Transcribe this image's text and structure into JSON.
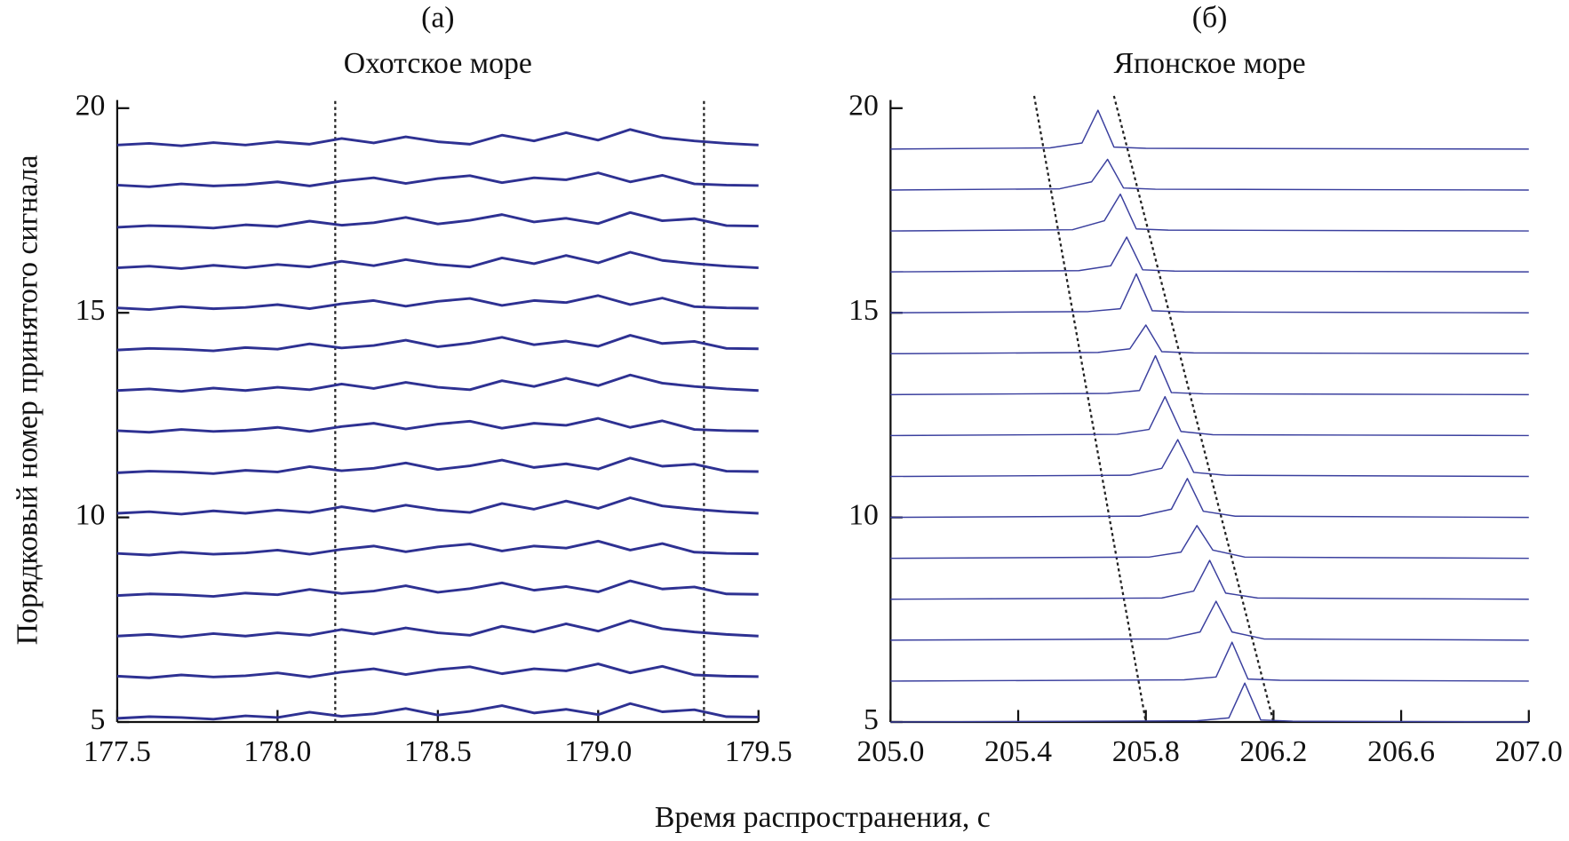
{
  "chart_data": [
    {
      "type": "line",
      "title": "(a)",
      "subtitle": "Охотское море",
      "ylabel": "Порядковый номер принятого сигнала",
      "xlabel": "Время распространения, с",
      "color": "#2e3192",
      "line_width": 2.6,
      "xlim": [
        177.5,
        179.5
      ],
      "ylim": [
        5,
        20.2
      ],
      "xticks": [
        177.5,
        {
          "value": 178,
          "label": "178.0"
        },
        178.5,
        {
          "value": 179,
          "label": "179.0"
        },
        179.5
      ],
      "yticks": [
        5,
        10,
        15,
        20
      ],
      "guides": [
        {
          "x": [
            178.18,
            178.18
          ],
          "y": [
            5,
            20.2
          ]
        },
        {
          "x": [
            179.33,
            179.33
          ],
          "y": [
            5,
            20.2
          ]
        }
      ],
      "x": [
        177.5,
        177.6,
        177.7,
        177.8,
        177.9,
        178.0,
        178.1,
        178.2,
        178.3,
        178.4,
        178.5,
        178.6,
        178.7,
        178.8,
        178.9,
        179.0,
        179.1,
        179.2,
        179.3,
        179.4,
        179.5
      ],
      "series": [
        {
          "values": [
            19.1,
            19.14,
            19.08,
            19.16,
            19.1,
            19.18,
            19.12,
            19.26,
            19.15,
            19.3,
            19.18,
            19.12,
            19.34,
            19.2,
            19.4,
            19.22,
            19.48,
            19.28,
            19.2,
            19.14,
            19.1
          ]
        },
        {
          "values": [
            18.12,
            18.08,
            18.15,
            18.1,
            18.13,
            18.2,
            18.1,
            18.22,
            18.3,
            18.16,
            18.28,
            18.35,
            18.18,
            18.3,
            18.25,
            18.42,
            18.2,
            18.36,
            18.15,
            18.12,
            18.11
          ]
        },
        {
          "values": [
            17.09,
            17.13,
            17.11,
            17.07,
            17.15,
            17.11,
            17.24,
            17.14,
            17.2,
            17.33,
            17.17,
            17.26,
            17.4,
            17.22,
            17.31,
            17.18,
            17.45,
            17.25,
            17.3,
            17.13,
            17.12
          ]
        },
        {
          "values": [
            16.1,
            16.14,
            16.08,
            16.16,
            16.1,
            16.18,
            16.12,
            16.26,
            16.15,
            16.3,
            16.18,
            16.12,
            16.34,
            16.2,
            16.4,
            16.22,
            16.48,
            16.28,
            16.2,
            16.14,
            16.1
          ]
        },
        {
          "values": [
            15.12,
            15.08,
            15.15,
            15.1,
            15.13,
            15.2,
            15.1,
            15.22,
            15.3,
            15.16,
            15.28,
            15.35,
            15.18,
            15.3,
            15.25,
            15.42,
            15.2,
            15.36,
            15.15,
            15.12,
            15.11
          ]
        },
        {
          "values": [
            14.09,
            14.13,
            14.11,
            14.07,
            14.15,
            14.11,
            14.24,
            14.14,
            14.2,
            14.33,
            14.17,
            14.26,
            14.4,
            14.22,
            14.31,
            14.18,
            14.45,
            14.25,
            14.3,
            14.13,
            14.12
          ]
        },
        {
          "values": [
            13.1,
            13.14,
            13.08,
            13.16,
            13.1,
            13.18,
            13.12,
            13.26,
            13.15,
            13.3,
            13.18,
            13.12,
            13.34,
            13.2,
            13.4,
            13.22,
            13.48,
            13.28,
            13.2,
            13.14,
            13.1
          ]
        },
        {
          "values": [
            12.12,
            12.08,
            12.15,
            12.1,
            12.13,
            12.2,
            12.1,
            12.22,
            12.3,
            12.16,
            12.28,
            12.35,
            12.18,
            12.3,
            12.25,
            12.42,
            12.2,
            12.36,
            12.15,
            12.12,
            12.11
          ]
        },
        {
          "values": [
            11.09,
            11.13,
            11.11,
            11.07,
            11.15,
            11.11,
            11.24,
            11.14,
            11.2,
            11.33,
            11.17,
            11.26,
            11.4,
            11.22,
            11.31,
            11.18,
            11.45,
            11.25,
            11.3,
            11.13,
            11.12
          ]
        },
        {
          "values": [
            10.1,
            10.14,
            10.08,
            10.16,
            10.1,
            10.18,
            10.12,
            10.26,
            10.15,
            10.3,
            10.18,
            10.12,
            10.34,
            10.2,
            10.4,
            10.22,
            10.48,
            10.28,
            10.2,
            10.14,
            10.1
          ]
        },
        {
          "values": [
            9.12,
            9.08,
            9.15,
            9.1,
            9.13,
            9.2,
            9.1,
            9.22,
            9.3,
            9.16,
            9.28,
            9.35,
            9.18,
            9.3,
            9.25,
            9.42,
            9.2,
            9.36,
            9.15,
            9.12,
            9.11
          ]
        },
        {
          "values": [
            8.09,
            8.13,
            8.11,
            8.07,
            8.15,
            8.11,
            8.24,
            8.14,
            8.2,
            8.33,
            8.17,
            8.26,
            8.4,
            8.22,
            8.31,
            8.18,
            8.45,
            8.25,
            8.3,
            8.13,
            8.12
          ]
        },
        {
          "values": [
            7.1,
            7.14,
            7.08,
            7.16,
            7.1,
            7.18,
            7.12,
            7.26,
            7.15,
            7.3,
            7.18,
            7.12,
            7.34,
            7.2,
            7.4,
            7.22,
            7.48,
            7.28,
            7.2,
            7.14,
            7.1
          ]
        },
        {
          "values": [
            6.12,
            6.08,
            6.15,
            6.1,
            6.13,
            6.2,
            6.1,
            6.22,
            6.3,
            6.16,
            6.28,
            6.35,
            6.18,
            6.3,
            6.25,
            6.42,
            6.2,
            6.36,
            6.15,
            6.12,
            6.11
          ]
        },
        {
          "values": [
            5.09,
            5.13,
            5.11,
            5.07,
            5.15,
            5.11,
            5.24,
            5.14,
            5.2,
            5.33,
            5.17,
            5.26,
            5.4,
            5.22,
            5.31,
            5.18,
            5.45,
            5.25,
            5.3,
            5.13,
            5.12
          ]
        }
      ]
    },
    {
      "type": "line",
      "title": "(б)",
      "subtitle": "Японское море",
      "color": "#3a3f9e",
      "line_width": 1.3,
      "xlim": [
        205,
        207
      ],
      "ylim": [
        5,
        20.2
      ],
      "xticks": [
        {
          "value": 205,
          "label": "205.0"
        },
        205.4,
        205.8,
        206.2,
        206.6,
        {
          "value": 207,
          "label": "207.0"
        }
      ],
      "yticks": [
        5,
        10,
        15,
        20
      ],
      "guides": [
        {
          "x": [
            205.45,
            205.8
          ],
          "y": [
            20.3,
            5
          ]
        },
        {
          "x": [
            205.7,
            206.2
          ],
          "y": [
            20.3,
            5
          ]
        }
      ],
      "series": [
        {
          "x": [
            205,
            205.5,
            205.6,
            205.65,
            205.7,
            205.8,
            207
          ],
          "values": [
            19,
            19.03,
            19.15,
            19.95,
            19.05,
            19.02,
            19
          ]
        },
        {
          "x": [
            205,
            205.53,
            205.63,
            205.68,
            205.73,
            205.83,
            207
          ],
          "values": [
            18,
            18.03,
            18.2,
            18.75,
            18.05,
            18.02,
            18
          ]
        },
        {
          "x": [
            205,
            205.57,
            205.67,
            205.72,
            205.77,
            205.87,
            207
          ],
          "values": [
            17,
            17.03,
            17.25,
            17.9,
            17.05,
            17.02,
            17
          ]
        },
        {
          "x": [
            205,
            205.59,
            205.69,
            205.74,
            205.79,
            205.89,
            207
          ],
          "values": [
            16,
            16.03,
            16.15,
            16.85,
            16.05,
            16.02,
            16
          ]
        },
        {
          "x": [
            205,
            205.62,
            205.72,
            205.77,
            205.82,
            205.92,
            207
          ],
          "values": [
            15,
            15.03,
            15.1,
            15.95,
            15.05,
            15.02,
            15
          ]
        },
        {
          "x": [
            205,
            205.65,
            205.75,
            205.8,
            205.85,
            205.95,
            207
          ],
          "values": [
            14,
            14.03,
            14.12,
            14.7,
            14.05,
            14.02,
            14
          ]
        },
        {
          "x": [
            205,
            205.68,
            205.78,
            205.83,
            205.88,
            205.98,
            207
          ],
          "values": [
            13,
            13.03,
            13.1,
            13.95,
            13.05,
            13.02,
            13
          ]
        },
        {
          "x": [
            205,
            205.71,
            205.81,
            205.86,
            205.91,
            206.01,
            207
          ],
          "values": [
            12,
            12.03,
            12.15,
            12.95,
            12.1,
            12.02,
            12
          ]
        },
        {
          "x": [
            205,
            205.75,
            205.85,
            205.9,
            205.95,
            206.05,
            207
          ],
          "values": [
            11,
            11.03,
            11.2,
            11.9,
            11.1,
            11.03,
            11
          ]
        },
        {
          "x": [
            205,
            205.78,
            205.88,
            205.93,
            205.98,
            206.08,
            207
          ],
          "values": [
            10,
            10.03,
            10.2,
            10.95,
            10.15,
            10.03,
            10
          ]
        },
        {
          "x": [
            205,
            205.81,
            205.91,
            205.96,
            206.01,
            206.11,
            207
          ],
          "values": [
            9,
            9.03,
            9.15,
            9.8,
            9.2,
            9.03,
            9
          ]
        },
        {
          "x": [
            205,
            205.85,
            205.95,
            206,
            206.05,
            206.15,
            207
          ],
          "values": [
            8,
            8.03,
            8.2,
            8.95,
            8.15,
            8.03,
            8
          ]
        },
        {
          "x": [
            205,
            205.87,
            205.97,
            206.02,
            206.07,
            206.17,
            207
          ],
          "values": [
            7,
            7.03,
            7.2,
            7.95,
            7.2,
            7.03,
            7
          ]
        },
        {
          "x": [
            205,
            205.92,
            206.02,
            206.07,
            206.12,
            206.22,
            207
          ],
          "values": [
            6,
            6.03,
            6.1,
            6.95,
            6.05,
            6.02,
            6
          ]
        },
        {
          "x": [
            205,
            205.96,
            206.06,
            206.11,
            206.16,
            206.26,
            207
          ],
          "values": [
            5,
            5.03,
            5.1,
            5.95,
            5.05,
            5.02,
            5
          ]
        }
      ]
    }
  ]
}
